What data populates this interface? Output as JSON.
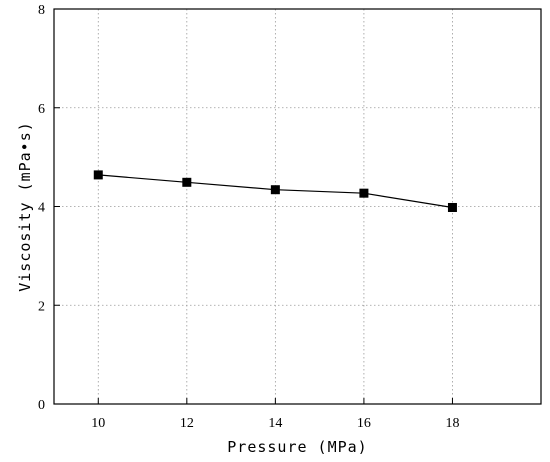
{
  "chart_data": {
    "type": "line",
    "title": "",
    "xlabel": "Pressure (MPa)",
    "ylabel": "Viscosity (mPa•s)",
    "xlim": [
      9,
      20
    ],
    "ylim": [
      0,
      8
    ],
    "x_ticks": [
      10,
      12,
      14,
      16,
      18
    ],
    "y_ticks": [
      0,
      2,
      4,
      6,
      8
    ],
    "grid": true,
    "legend": "none",
    "marker": "square",
    "series": [
      {
        "x": [
          10,
          12,
          14,
          16,
          18
        ],
        "y": [
          4.64,
          4.49,
          4.34,
          4.27,
          3.98
        ],
        "color": "#000000"
      }
    ]
  }
}
